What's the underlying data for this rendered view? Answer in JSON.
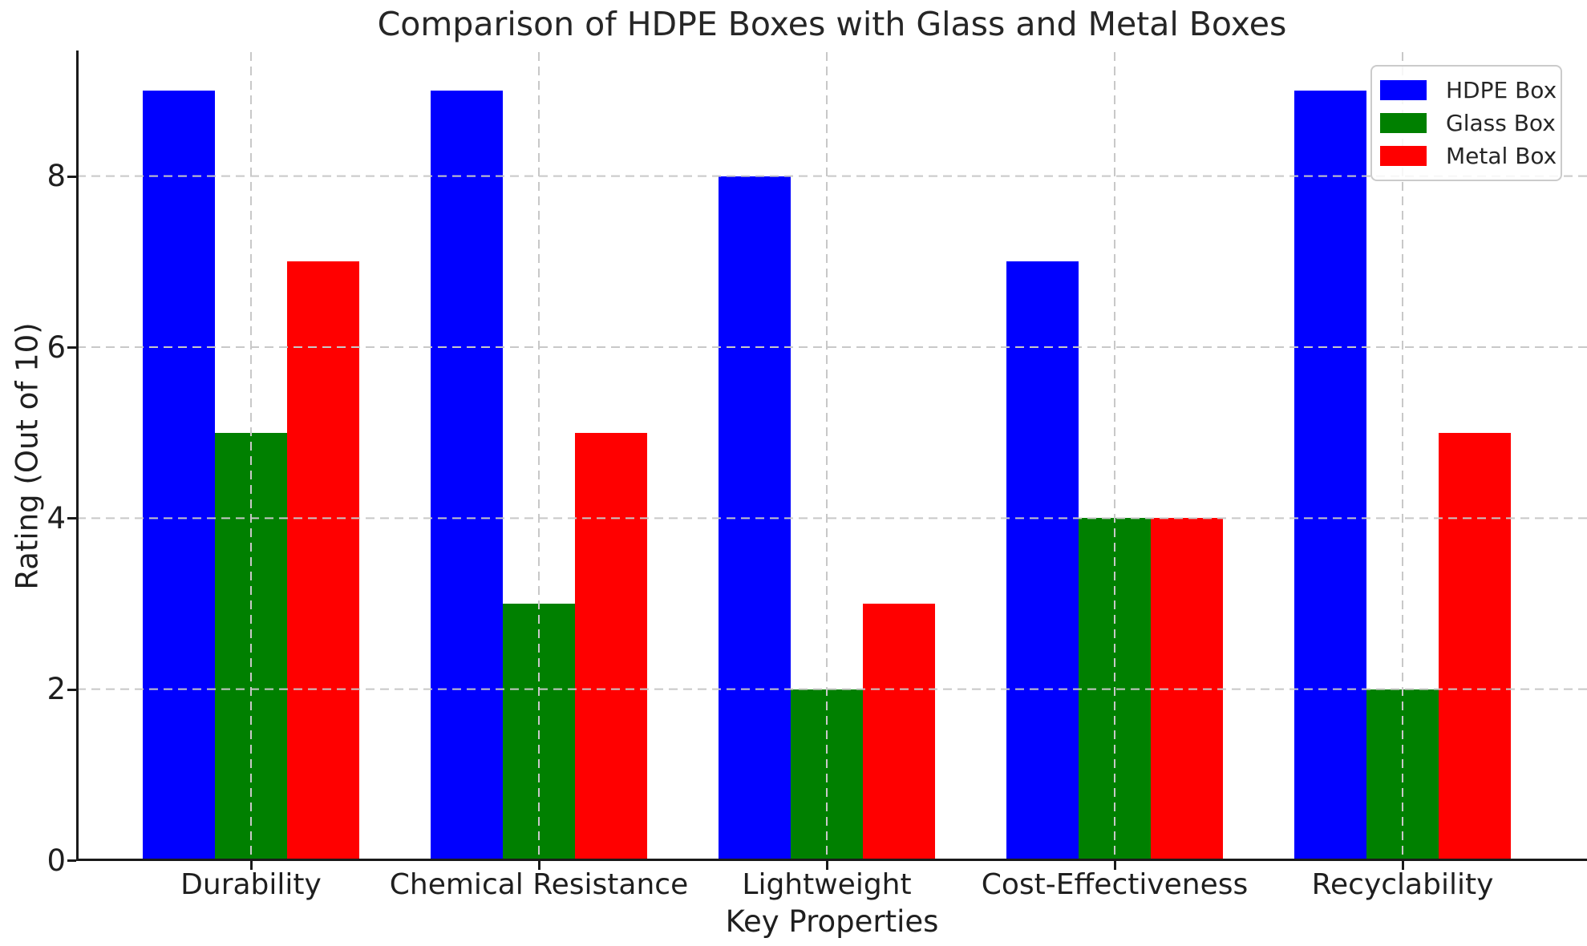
{
  "chart_data": {
    "type": "bar",
    "title": "Comparison of HDPE Boxes with Glass and Metal Boxes",
    "xlabel": "Key Properties",
    "ylabel": "Rating (Out of 10)",
    "categories": [
      "Durability",
      "Chemical Resistance",
      "Lightweight",
      "Cost-Effectiveness",
      "Recyclability"
    ],
    "series": [
      {
        "name": "HDPE Box",
        "color": "#0000ff",
        "values": [
          9,
          9,
          8,
          7,
          9
        ]
      },
      {
        "name": "Glass Box",
        "color": "#008000",
        "values": [
          5,
          3,
          2,
          4,
          2
        ]
      },
      {
        "name": "Metal Box",
        "color": "#ff0000",
        "values": [
          7,
          5,
          3,
          4,
          5
        ]
      }
    ],
    "yticks": [
      "0",
      "2",
      "4",
      "6",
      "8"
    ],
    "ylim": [
      0,
      9.45
    ],
    "grid": {
      "visible": true,
      "style": "dashed",
      "color": "#c8c8c8",
      "horizontal": true,
      "vertical": true,
      "above_bars": true
    },
    "legend": {
      "position": "upper right"
    },
    "background": "#ffffff",
    "text_color": "#1f1f1f"
  }
}
